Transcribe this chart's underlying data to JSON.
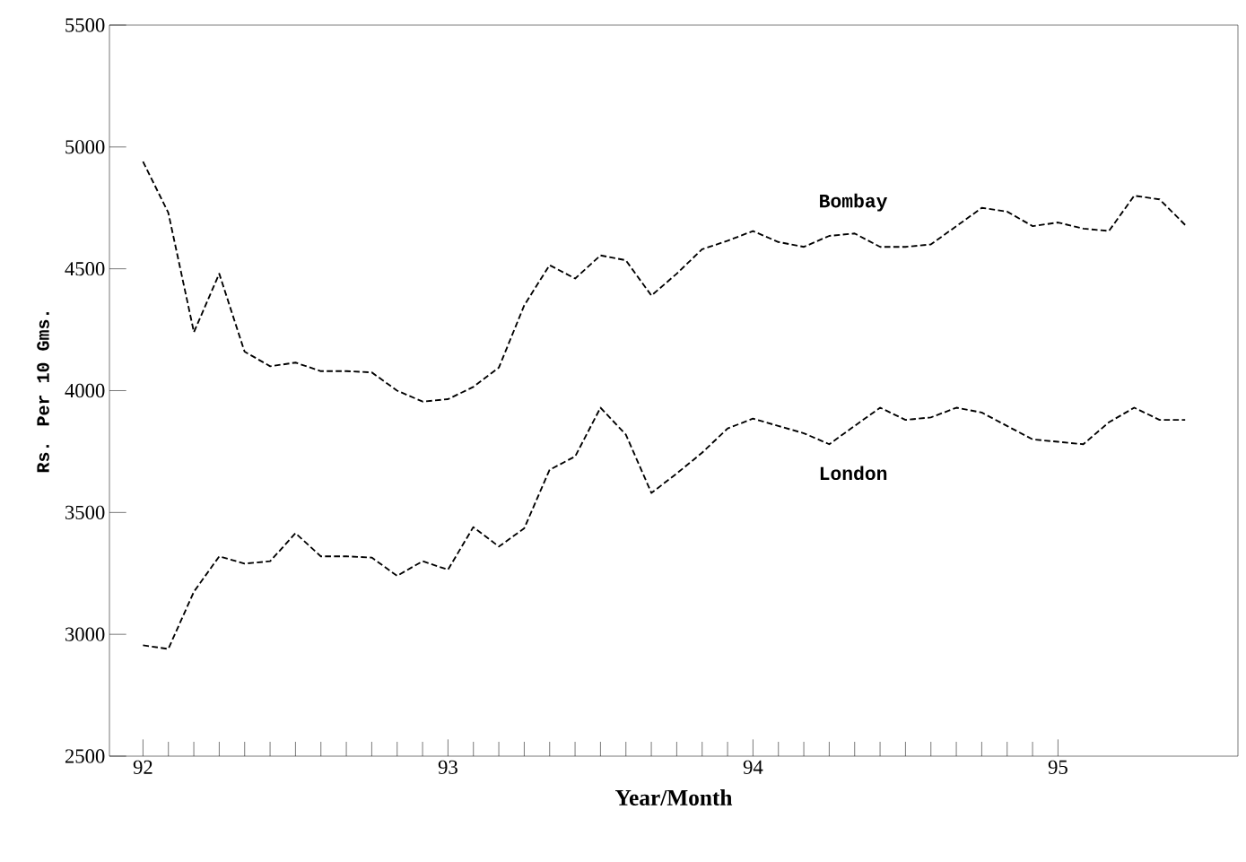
{
  "chart_data": {
    "type": "line",
    "xlabel": "Year/Month",
    "ylabel": "Rs. Per 10 Gms.",
    "x": [
      92,
      92.083,
      92.167,
      92.25,
      92.333,
      92.417,
      92.5,
      92.583,
      92.667,
      92.75,
      92.833,
      92.917,
      93,
      93.083,
      93.167,
      93.25,
      93.333,
      93.417,
      93.5,
      93.583,
      93.667,
      93.75,
      93.833,
      93.917,
      94,
      94.083,
      94.167,
      94.25,
      94.333,
      94.417,
      94.5,
      94.583,
      94.667,
      94.75,
      94.833,
      94.917,
      95,
      95.083,
      95.167,
      95.25,
      95.333,
      95.417
    ],
    "series": [
      {
        "name": "Bombay",
        "color": "#000000",
        "values": [
          4940,
          4730,
          4240,
          4480,
          4160,
          4100,
          4115,
          4080,
          4080,
          4075,
          4000,
          3955,
          3965,
          4015,
          4095,
          4350,
          4515,
          4460,
          4555,
          4535,
          4390,
          4480,
          4580,
          4615,
          4655,
          4610,
          4590,
          4635,
          4645,
          4590,
          4590,
          4600,
          4675,
          4750,
          4735,
          4675,
          4690,
          4665,
          4655,
          4800,
          4785,
          4680
        ]
      },
      {
        "name": "London",
        "color": "#000000",
        "values": [
          2955,
          2940,
          3175,
          3320,
          3290,
          3300,
          3415,
          3320,
          3320,
          3315,
          3240,
          3300,
          3265,
          3440,
          3360,
          3435,
          3675,
          3730,
          3930,
          3820,
          3580,
          3660,
          3745,
          3845,
          3885,
          3855,
          3825,
          3780,
          3855,
          3930,
          3880,
          3890,
          3930,
          3910,
          3855,
          3800,
          3790,
          3780,
          3870,
          3930,
          3880,
          3880
        ]
      }
    ],
    "xlim": [
      91.89,
      95.59
    ],
    "ylim": [
      2500,
      5500
    ],
    "xticks": [
      92,
      93,
      94,
      95
    ],
    "yticks": [
      2500,
      3000,
      3500,
      4000,
      4500,
      5000,
      5500
    ],
    "grid": false,
    "legend": false,
    "marker": "none",
    "line_style": "dashed"
  }
}
